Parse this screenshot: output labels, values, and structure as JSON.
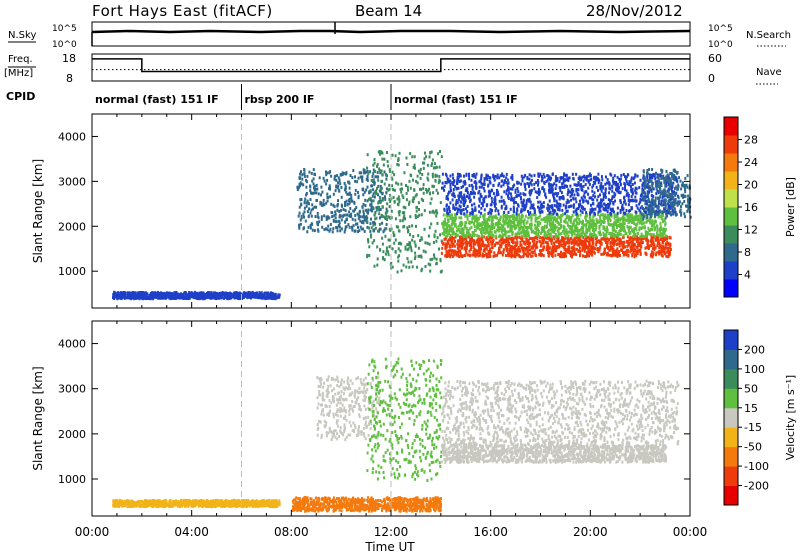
{
  "header": {
    "title": "Fort Hays East (fitACF)",
    "beam": "Beam 14",
    "date": "28/Nov/2012"
  },
  "noise_panel": {
    "left_label": "N.Sky",
    "right_label": "N.Search",
    "left_ticks": [
      "10^5",
      "10^0"
    ],
    "right_ticks": [
      "10^5",
      "10^0"
    ]
  },
  "freq_panel": {
    "left_label_top": "Freq.",
    "left_label_bottom": "[MHz]",
    "right_label": "Nave",
    "left_ticks": [
      "18",
      "8"
    ],
    "right_ticks": [
      "60",
      "0"
    ],
    "freq_steps": [
      {
        "t_start": 0,
        "t_end": 2,
        "level": 0.82
      },
      {
        "t_start": 2,
        "t_end": 14,
        "level": 0.35
      },
      {
        "t_start": 14,
        "t_end": 24,
        "level": 0.82
      }
    ],
    "nave_level": 0.42
  },
  "cpid": {
    "label": "CPID",
    "segments": [
      {
        "text": "normal (fast) 151 IF",
        "t_start": 0,
        "t_end": 6
      },
      {
        "text": "rbsp 200 IF",
        "t_start": 6,
        "t_end": 12
      },
      {
        "text": "normal (fast) 151 IF",
        "t_start": 12,
        "t_end": 24
      }
    ]
  },
  "chart_data": [
    {
      "type": "heatmap",
      "ylabel": "Slant Range [km]",
      "yticks": [
        "1000",
        "2000",
        "3000",
        "4000"
      ],
      "ylim": [
        180,
        4500
      ],
      "xlim": [
        0,
        24
      ],
      "colorbar_label": "Power [dB]",
      "colorbar_ticks": [
        "4",
        "8",
        "12",
        "16",
        "20",
        "24",
        "28"
      ],
      "colorbar_colors": [
        "#0000ff",
        "#1e40c8",
        "#2f6a8c",
        "#3a8c5a",
        "#5fbf3f",
        "#bfe04a",
        "#f2b318",
        "#f47a0e",
        "#ee3b0b",
        "#e80000"
      ],
      "bands": [
        {
          "t0": 0.8,
          "t1": 7.5,
          "r0": 420,
          "r1": 560,
          "color": "#1e40c8"
        },
        {
          "t0": 8.2,
          "t1": 11.8,
          "r0": 1900,
          "r1": 3300,
          "color": "#2f6a8c"
        },
        {
          "t0": 11.0,
          "t1": 14.0,
          "r0": 1000,
          "r1": 3700,
          "color": "#3a8c5a"
        },
        {
          "t0": 14.0,
          "t1": 23.2,
          "r0": 1350,
          "r1": 1800,
          "color": "#ee3b0b"
        },
        {
          "t0": 14.0,
          "t1": 23.0,
          "r0": 1800,
          "r1": 2300,
          "color": "#5fbf3f"
        },
        {
          "t0": 14.0,
          "t1": 23.5,
          "r0": 2300,
          "r1": 3200,
          "color": "#1e40c8"
        },
        {
          "t0": 22.0,
          "t1": 24.0,
          "r0": 2200,
          "r1": 3300,
          "color": "#2f6a8c"
        }
      ]
    },
    {
      "type": "heatmap",
      "ylabel": "Slant Range [km]",
      "yticks": [
        "1000",
        "2000",
        "3000",
        "4000"
      ],
      "ylim": [
        180,
        4500
      ],
      "xlim": [
        0,
        24
      ],
      "xticks": [
        "00:00",
        "04:00",
        "08:00",
        "12:00",
        "16:00",
        "20:00",
        "00:00"
      ],
      "xlabel": "Time UT",
      "colorbar_label": "Velocity [m s⁻¹]",
      "colorbar_ticks": [
        "200",
        "100",
        "50",
        "15",
        "-15",
        "-50",
        "-100",
        "-200"
      ],
      "colorbar_colors": [
        "#1e40c8",
        "#2f6a8c",
        "#3a8c5a",
        "#5fbf3f",
        "#c8c8c0",
        "#f2b318",
        "#f47a0e",
        "#ee3b0b",
        "#e80000"
      ],
      "bands": [
        {
          "t0": 0.8,
          "t1": 7.5,
          "r0": 420,
          "r1": 560,
          "color": "#f2b318"
        },
        {
          "t0": 8.0,
          "t1": 14.0,
          "r0": 320,
          "r1": 620,
          "color": "#f47a0e"
        },
        {
          "t0": 9.0,
          "t1": 11.5,
          "r0": 1900,
          "r1": 3300,
          "color": "#c8c8c0"
        },
        {
          "t0": 11.0,
          "t1": 14.0,
          "r0": 1000,
          "r1": 3700,
          "color": "#5fbf3f"
        },
        {
          "t0": 14.0,
          "t1": 23.0,
          "r0": 1400,
          "r1": 1800,
          "color": "#c8c8c0"
        },
        {
          "t0": 14.0,
          "t1": 23.5,
          "r0": 1800,
          "r1": 3200,
          "color": "#c8c8c0"
        }
      ]
    }
  ]
}
